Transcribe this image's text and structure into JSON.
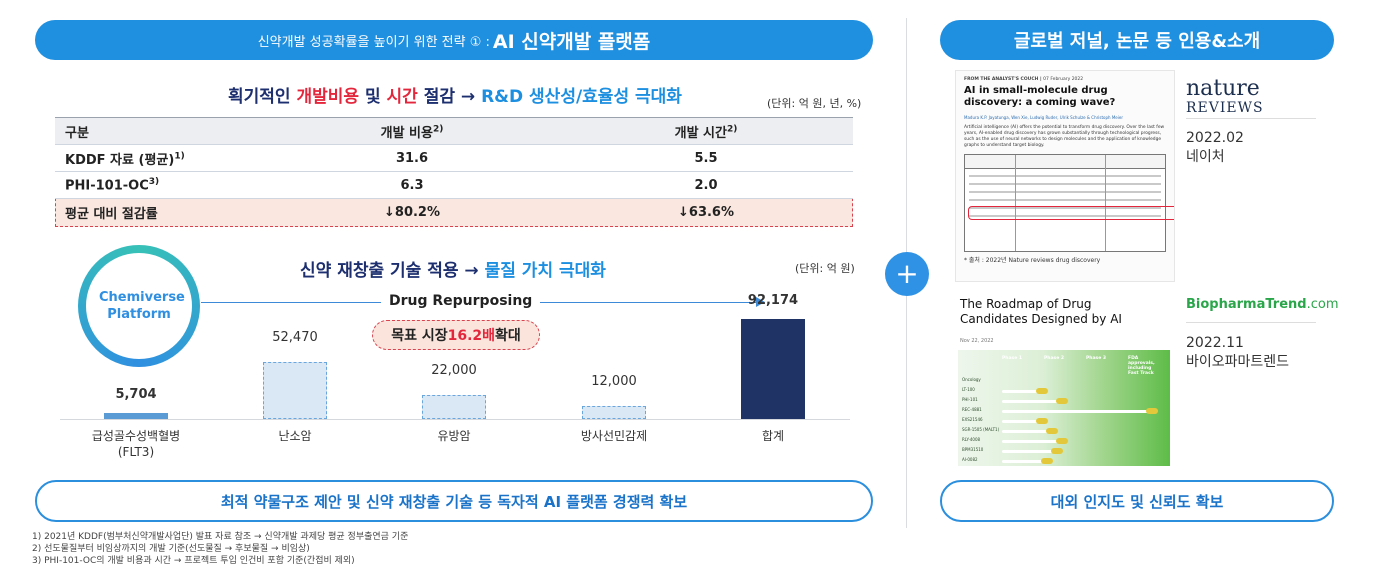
{
  "left": {
    "banner_prefix": "신약개발 성공확률을 높이기 위한 전략 ① :",
    "banner_strong": "AI 신약개발 플랫폼",
    "headline1": {
      "p1": "획기적인 ",
      "red1": "개발비용",
      "p2": " 및 ",
      "red2": "시간",
      "p3": " 절감 → ",
      "blue": "R&D 생산성/효율성 극대화"
    },
    "unit1": "(단위: 억 원, 년, %)",
    "table": {
      "headers": [
        "구분",
        "개발 비용",
        "개발 시간"
      ],
      "header_sup": [
        "",
        "2)",
        "2)"
      ],
      "rows": [
        {
          "label": "KDDF 자료 (평균)",
          "sup": "1)",
          "cost": "31.6",
          "time": "5.5"
        },
        {
          "label": "PHI-101-OC",
          "sup": "3)",
          "cost": "6.3",
          "time": "2.0"
        },
        {
          "label": "평균 대비 절감률",
          "sup": "",
          "cost": "↓80.2%",
          "time": "↓63.6%"
        }
      ]
    },
    "headline2": {
      "p1": "신약 재창출 기술 적용 → ",
      "blue": "물질 가치 극대화"
    },
    "unit2": "(단위: 억 원)",
    "platform_label": "Chemiverse Platform",
    "drug_repurposing": "Drug Repurposing",
    "target_badge": {
      "p1": "목표 시장 ",
      "red": "16.2배",
      "p2": " 확대"
    },
    "bottom_banner": "최적 약물구조 제안 및 신약 재창출 기술 등 독자적 AI 플랫폼 경쟁력 확보",
    "footnotes": [
      "1) 2021년 KDDF(범부처신약개발사업단) 발표 자료 참조 → 신약개발 과제당 평균 정부출연금 기준",
      "2) 선도물질부터 비임상까지의 개발 기준(선도물질 → 후보물질 → 비임상)",
      "3) PHI-101-OC의 개발 비용과 시간 → 프로젝트 투입 인건비 포함 기준(간접비 제외)"
    ]
  },
  "chart_data": {
    "type": "bar",
    "categories": [
      "급성골수성백혈병 (FLT3)",
      "난소암",
      "유방암",
      "방사선민감제",
      "합계"
    ],
    "values": [
      5704,
      52470,
      22000,
      12000,
      92174
    ],
    "value_labels": [
      "5,704",
      "52,470",
      "22,000",
      "12,000",
      "92,174"
    ],
    "category_lines": [
      [
        "급성골수성백혈병",
        "(FLT3)"
      ],
      [
        "난소암"
      ],
      [
        "유방암"
      ],
      [
        "방사선민감제"
      ],
      [
        "합계"
      ]
    ],
    "ylim": [
      0,
      92174
    ],
    "grid": false,
    "colors": {
      "first": "#5b9bd5",
      "middle": "#dae8f6",
      "middle_border": "#6aa6de",
      "total": "#1f3464"
    }
  },
  "right": {
    "banner": "글로벌 저널, 논문 등 인용&소개",
    "plus": "+",
    "paper1": {
      "kicker": "FROM THE ANALYST'S COUCH",
      "date": "07 February 2022",
      "title": "AI in small-molecule drug discovery: a coming wave?",
      "authors": "Madura K.P. Jayatunga, Wen Xie, Ludwig Ruder, Ulrik Schulze & Christoph Meier",
      "abstract": "Artificial intelligence (AI) offers the potential to transform drug discovery. Over the last few years, AI-enabled drug discovery has grown substantially through technological progress, such as the use of neural networks to design molecules and the application of knowledge graphs to understand target biology.",
      "source_note": "* 출처 : 2022년 Nature reviews drug discovery"
    },
    "source1": {
      "logo_line1": "nature",
      "logo_line2": "REVIEWS",
      "date": "2022.02",
      "name": "네이처"
    },
    "paper2": {
      "title": "The Roadmap of Drug Candidates Designed by AI",
      "date": "Nov 22, 2022",
      "phases": [
        "Phase 1",
        "Phase 2",
        "Phase 3",
        "FDA approvals, including Fast Track"
      ],
      "rows": [
        "Oncology",
        "LT-100",
        "PHI-101",
        "REC-4881",
        "EXS21546",
        "SGR-1505 (MALT1)",
        "RLY-4008",
        "BPM31510",
        "AI-0082"
      ]
    },
    "source2": {
      "logo_main": "BiopharmaTrend",
      "logo_suffix": ".com",
      "date": "2022.11",
      "name": "바이오파마트렌드"
    },
    "bottom_banner": "대외 인지도 및 신뢰도 확보"
  }
}
